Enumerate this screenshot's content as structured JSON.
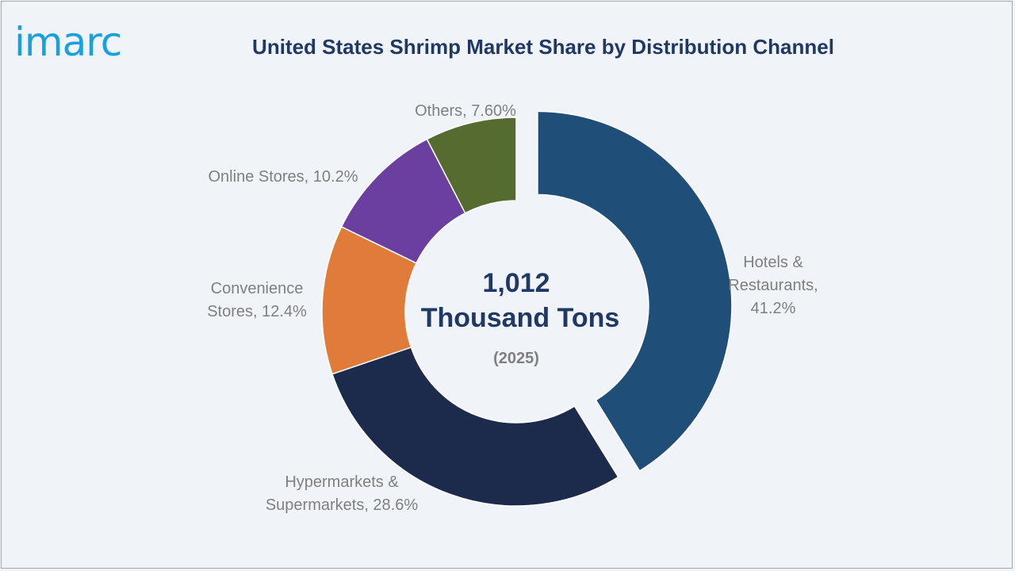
{
  "brand": {
    "logo_text": "imarc"
  },
  "chart_data": {
    "type": "pie",
    "title": "United States Shrimp Market Share by Distribution Channel",
    "center": {
      "value": "1,012",
      "unit": "Thousand Tons",
      "year": "(2025)"
    },
    "slices": [
      {
        "label": [
          "Hotels &",
          "Restaurants,",
          "41.2%"
        ],
        "category": "Hotels & Restaurants",
        "value": 41.2,
        "color": "#1f4e79",
        "exploded": true
      },
      {
        "label": [
          "Hypermarkets &",
          "Supermarkets, 28.6%"
        ],
        "category": "Hypermarkets & Supermarkets",
        "value": 28.6,
        "color": "#1c2a4b",
        "exploded": false
      },
      {
        "label": [
          "Convenience",
          "Stores, 12.4%"
        ],
        "category": "Convenience Stores",
        "value": 12.4,
        "color": "#e07b39",
        "exploded": false
      },
      {
        "label": [
          "Online Stores, 10.2%"
        ],
        "category": "Online Stores",
        "value": 10.2,
        "color": "#6b3fa0",
        "exploded": false
      },
      {
        "label": [
          "Others, 7.60%"
        ],
        "category": "Others",
        "value": 7.6,
        "color": "#556b2f",
        "exploded": false
      }
    ]
  }
}
